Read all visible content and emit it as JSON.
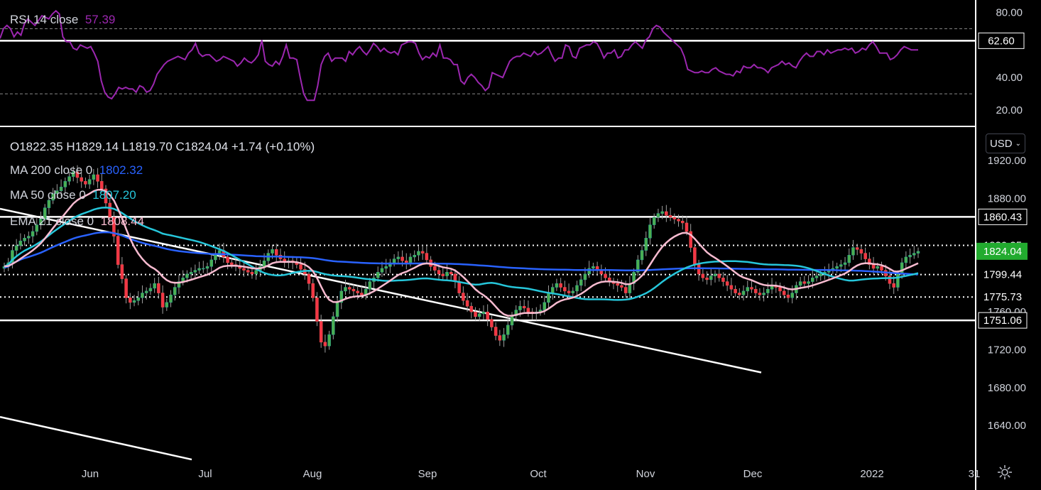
{
  "indicators": {
    "rsi": {
      "name": "RSI 14 close",
      "value": "57.39",
      "color": "#9c27b0"
    },
    "ohlc": "O1822.35  H1829.14  L1819.70  C1824.04  +1.74 (+0.10%)",
    "ma200": {
      "name": "MA 200 close 0",
      "value": "1802.32",
      "color": "#2962ff"
    },
    "ma50": {
      "name": "MA 50 close 0",
      "value": "1807.20",
      "color": "#26c6da"
    },
    "ema21": {
      "name": "EMA 21 close 0",
      "value": "1808.44",
      "color": "#f8bbd0"
    }
  },
  "currency_button": "USD",
  "chart_data": [
    {
      "type": "line",
      "ylim": [
        10,
        85
      ],
      "y_ticks": [
        {
          "value": 80,
          "label": "80.00"
        },
        {
          "value": 40,
          "label": "40.00"
        },
        {
          "value": 20,
          "label": "20.00"
        }
      ],
      "horizontal_lines": [
        {
          "value": 62.6,
          "label": "62.60",
          "style": "solid",
          "color": "#ffffff"
        },
        {
          "value": 70,
          "style": "dashed"
        },
        {
          "value": 30,
          "style": "dashed"
        }
      ],
      "series": [
        {
          "name": "RSI 14 close",
          "color": "#9c27b0",
          "values": [
            64,
            70,
            72,
            70,
            65,
            68,
            66,
            73,
            76,
            74,
            72,
            75,
            78,
            77,
            76,
            79,
            81,
            79,
            65,
            62,
            62,
            58,
            57,
            60,
            59,
            58,
            59,
            55,
            50,
            38,
            31,
            28,
            27,
            30,
            34,
            33,
            34,
            33,
            33,
            31,
            35,
            34,
            31,
            32,
            36,
            42,
            45,
            48,
            50,
            51,
            52,
            53,
            52,
            51,
            55,
            57,
            61,
            55,
            53,
            54,
            54,
            52,
            50,
            51,
            53,
            52,
            51,
            50,
            47,
            49,
            52,
            50,
            49,
            51,
            54,
            63,
            50,
            48,
            47,
            50,
            48,
            53,
            60,
            52,
            52,
            51,
            40,
            30,
            26,
            26,
            26,
            35,
            48,
            53,
            55,
            50,
            52,
            52,
            52,
            50,
            56,
            54,
            57,
            59,
            56,
            54,
            57,
            61,
            59,
            56,
            58,
            56,
            55,
            56,
            54,
            60,
            61,
            62,
            62,
            61,
            55,
            51,
            53,
            52,
            55,
            53,
            60,
            52,
            52,
            51,
            48,
            48,
            38,
            36,
            40,
            42,
            40,
            37,
            35,
            32,
            34,
            43,
            42,
            41,
            40,
            45,
            50,
            52,
            53,
            53,
            55,
            54,
            53,
            56,
            54,
            55,
            57,
            59,
            54,
            50,
            52,
            52,
            60,
            59,
            53,
            52,
            58,
            59,
            60,
            60,
            62,
            61,
            57,
            52,
            55,
            55,
            57,
            52,
            53,
            57,
            57,
            60,
            62,
            60,
            58,
            63,
            65,
            70,
            72,
            71,
            68,
            66,
            64,
            62,
            60,
            58,
            53,
            45,
            44,
            43,
            43,
            44,
            43,
            43,
            45,
            46,
            44,
            43,
            42,
            42,
            41,
            44,
            43,
            47,
            46,
            46,
            48,
            46,
            46,
            45,
            43,
            46,
            47,
            48,
            50,
            48,
            49,
            47,
            46,
            50,
            53,
            55,
            53,
            53,
            56,
            56,
            54,
            57,
            55,
            56,
            57,
            57,
            58,
            57,
            58,
            55,
            56,
            58,
            57,
            60,
            62,
            59,
            55,
            55,
            55,
            51,
            52,
            54,
            57,
            59,
            58,
            57,
            57,
            57
          ]
        }
      ]
    },
    {
      "type": "candlestick",
      "ylim": [
        1610,
        1940
      ],
      "x_ticks": [
        "Jun",
        "Jul",
        "Aug",
        "Sep",
        "Oct",
        "Nov",
        "Dec",
        "2022",
        "31"
      ],
      "y_ticks": [
        {
          "value": 1920,
          "label": "1920.00"
        },
        {
          "value": 1880,
          "label": "1880.00"
        },
        {
          "value": 1760,
          "label": "1760.00"
        },
        {
          "value": 1720,
          "label": "1720.00"
        },
        {
          "value": 1680,
          "label": "1680.00"
        },
        {
          "value": 1640,
          "label": "1640.00"
        }
      ],
      "price_labels": [
        {
          "value": 1860.43,
          "label": "1860.43",
          "style": "solid"
        },
        {
          "value": 1830.35,
          "label": "1830.35",
          "style": "dotted"
        },
        {
          "value": 1824.04,
          "label": "1824.04",
          "style": "current"
        },
        {
          "value": 1799.44,
          "label": "1799.44",
          "style": "dotted"
        },
        {
          "value": 1775.73,
          "label": "1775.73",
          "style": "dotted"
        },
        {
          "value": 1751.06,
          "label": "1751.06",
          "style": "solid"
        }
      ],
      "closes": [
        1808,
        1812,
        1825,
        1830,
        1835,
        1838,
        1840,
        1845,
        1852,
        1858,
        1870,
        1878,
        1885,
        1888,
        1892,
        1898,
        1903,
        1908,
        1902,
        1898,
        1895,
        1900,
        1905,
        1898,
        1890,
        1875,
        1860,
        1840,
        1810,
        1795,
        1775,
        1770,
        1772,
        1775,
        1780,
        1782,
        1785,
        1790,
        1780,
        1765,
        1770,
        1778,
        1786,
        1792,
        1796,
        1800,
        1802,
        1804,
        1806,
        1806,
        1808,
        1815,
        1820,
        1825,
        1818,
        1812,
        1810,
        1808,
        1806,
        1804,
        1802,
        1800,
        1804,
        1808,
        1814,
        1822,
        1826,
        1820,
        1816,
        1812,
        1814,
        1812,
        1810,
        1805,
        1800,
        1790,
        1775,
        1750,
        1728,
        1724,
        1736,
        1755,
        1770,
        1782,
        1786,
        1784,
        1782,
        1780,
        1778,
        1784,
        1792,
        1796,
        1802,
        1806,
        1808,
        1812,
        1816,
        1818,
        1814,
        1812,
        1818,
        1820,
        1824,
        1822,
        1815,
        1808,
        1804,
        1800,
        1798,
        1802,
        1800,
        1792,
        1780,
        1772,
        1766,
        1760,
        1755,
        1758,
        1760,
        1752,
        1744,
        1735,
        1730,
        1736,
        1746,
        1756,
        1762,
        1766,
        1764,
        1760,
        1758,
        1760,
        1762,
        1770,
        1780,
        1786,
        1790,
        1786,
        1782,
        1780,
        1782,
        1788,
        1794,
        1800,
        1806,
        1808,
        1804,
        1800,
        1796,
        1792,
        1790,
        1788,
        1786,
        1780,
        1790,
        1802,
        1815,
        1825,
        1838,
        1852,
        1860,
        1864,
        1866,
        1862,
        1860,
        1858,
        1856,
        1854,
        1845,
        1828,
        1810,
        1800,
        1796,
        1794,
        1798,
        1800,
        1796,
        1792,
        1788,
        1784,
        1780,
        1778,
        1782,
        1786,
        1784,
        1780,
        1778,
        1780,
        1784,
        1788,
        1786,
        1782,
        1778,
        1775,
        1780,
        1788,
        1792,
        1790,
        1792,
        1796,
        1798,
        1800,
        1802,
        1804,
        1806,
        1808,
        1810,
        1812,
        1820,
        1828,
        1826,
        1822,
        1816,
        1810,
        1806,
        1808,
        1804,
        1798,
        1790,
        1786,
        1800,
        1812,
        1818,
        1820,
        1822,
        1824
      ]
    }
  ]
}
